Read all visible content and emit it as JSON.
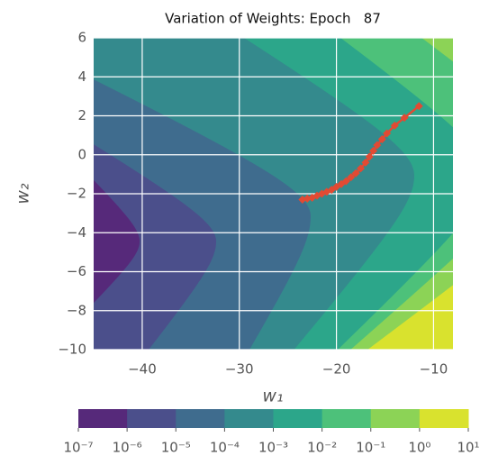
{
  "chart_data": {
    "type": "contour",
    "title": "Variation of Weights: Epoch   87",
    "x_label": "w₁",
    "y_label": "w₂",
    "xlim": [
      -45,
      -8
    ],
    "ylim": [
      -10,
      6
    ],
    "xticks": [
      {
        "value": -40,
        "label": "−40"
      },
      {
        "value": -30,
        "label": "−30"
      },
      {
        "value": -20,
        "label": "−20"
      },
      {
        "value": -10,
        "label": "−10"
      }
    ],
    "yticks": [
      {
        "value": -10,
        "label": "−10"
      },
      {
        "value": -8,
        "label": "−8"
      },
      {
        "value": -6,
        "label": "−6"
      },
      {
        "value": -4,
        "label": "−4"
      },
      {
        "value": -2,
        "label": "−2"
      },
      0,
      2,
      4,
      6
    ],
    "grid": true,
    "series": [
      {
        "color": "#e24a33",
        "x": [
          -11.5,
          -13,
          -14,
          -14.8,
          -15.3,
          -15.8,
          -16.2,
          -16.6,
          -17,
          -17.5,
          -18,
          -18.5,
          -19,
          -19.5,
          -20,
          -20.5,
          -21,
          -21.5,
          -22,
          -22.5,
          -23,
          -23.5
        ],
        "values": [
          2.5,
          1.9,
          1.5,
          1.1,
          0.8,
          0.5,
          0.2,
          -0.1,
          -0.4,
          -0.7,
          -0.95,
          -1.15,
          -1.35,
          -1.5,
          -1.65,
          -1.8,
          -1.9,
          -2.0,
          -2.1,
          -2.2,
          -2.25,
          -2.3
        ]
      }
    ],
    "colorbar": {
      "log": true,
      "levels": [
        1e-07,
        1e-06,
        1e-05,
        0.0001,
        0.001,
        0.01,
        0.1,
        1,
        10
      ],
      "colors": [
        "#56297a",
        "#4b4f8b",
        "#3f6c8e",
        "#348a8d",
        "#2ca68a",
        "#4dc17a",
        "#8cd356",
        "#d9e22e"
      ],
      "ticks": [
        {
          "value": 1e-07,
          "label": "10⁻⁷"
        },
        {
          "value": 1e-06,
          "label": "10⁻⁶"
        },
        {
          "value": 1e-05,
          "label": "10⁻⁵"
        },
        {
          "value": 0.0001,
          "label": "10⁻⁴"
        },
        {
          "value": 0.001,
          "label": "10⁻³"
        },
        {
          "value": 0.01,
          "label": "10⁻²"
        },
        {
          "value": 0.1,
          "label": "10⁻¹"
        },
        {
          "value": 1,
          "label": "10⁰"
        },
        {
          "value": 10,
          "label": "10¹"
        }
      ]
    }
  }
}
